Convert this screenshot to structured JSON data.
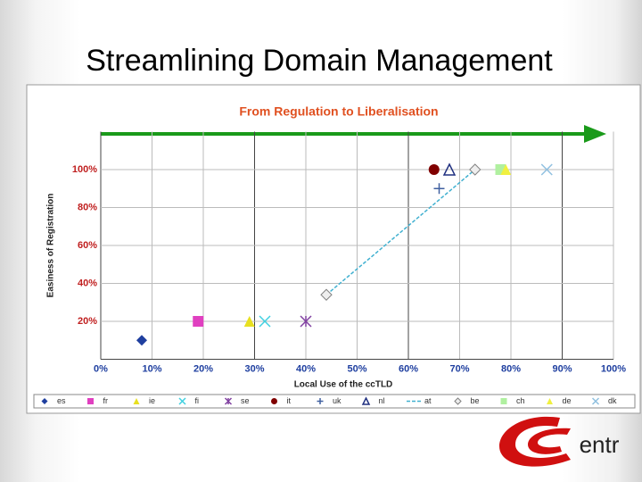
{
  "slide": {
    "title": "Streamlining Domain Management",
    "logo": "entr"
  },
  "chart_data": {
    "type": "scatter",
    "title": "From Regulation to Liberalisation",
    "x_label": "Local Use of the ccTLD",
    "y_label": "Easiness of Registration",
    "xlim": [
      0,
      100
    ],
    "ylim": [
      0,
      120
    ],
    "xticks": [
      {
        "value": 0,
        "label": "0%"
      },
      {
        "value": 10,
        "label": "10%"
      },
      {
        "value": 20,
        "label": "20%"
      },
      {
        "value": 30,
        "label": "30%"
      },
      {
        "value": 40,
        "label": "40%"
      },
      {
        "value": 50,
        "label": "50%"
      },
      {
        "value": 60,
        "label": "60%"
      },
      {
        "value": 70,
        "label": "70%"
      },
      {
        "value": 80,
        "label": "80%"
      },
      {
        "value": 90,
        "label": "90%"
      },
      {
        "value": 100,
        "label": "100%"
      }
    ],
    "yticks": [
      {
        "value": 20,
        "label": "20%"
      },
      {
        "value": 40,
        "label": "40%"
      },
      {
        "value": 60,
        "label": "60%"
      },
      {
        "value": 80,
        "label": "80%"
      },
      {
        "value": 100,
        "label": "100%"
      }
    ],
    "grid": true,
    "legend": "bottom",
    "series": [
      {
        "name": "es",
        "color": "#1f3f9f",
        "marker": "diamond",
        "x": [
          8
        ],
        "values": [
          10
        ]
      },
      {
        "name": "fr",
        "color": "#e040c0",
        "marker": "square",
        "x": [
          19
        ],
        "values": [
          20
        ]
      },
      {
        "name": "ie",
        "color": "#e8e020",
        "marker": "triangle",
        "x": [
          29
        ],
        "values": [
          20
        ]
      },
      {
        "name": "fi",
        "color": "#40d0e0",
        "marker": "x",
        "x": [
          32
        ],
        "values": [
          20
        ]
      },
      {
        "name": "se",
        "color": "#8040a0",
        "marker": "asterisk",
        "x": [
          40
        ],
        "values": [
          20
        ]
      },
      {
        "name": "it",
        "color": "#800000",
        "marker": "circle",
        "x": [
          65
        ],
        "values": [
          100
        ]
      },
      {
        "name": "uk",
        "color": "#4060a0",
        "marker": "plus",
        "x": [
          66
        ],
        "values": [
          90
        ]
      },
      {
        "name": "nl",
        "color": "#203080",
        "marker": "triangle-open",
        "x": [
          68
        ],
        "values": [
          100
        ]
      },
      {
        "name": "at",
        "color": "#40b0d0",
        "marker": "line",
        "x": [
          44,
          73
        ],
        "values": [
          34,
          100
        ]
      },
      {
        "name": "be",
        "color": "#808080",
        "marker": "diamond-open",
        "x": [
          44,
          73
        ],
        "values": [
          34,
          100
        ]
      },
      {
        "name": "ch",
        "color": "#b0f0a0",
        "marker": "square",
        "x": [
          78
        ],
        "values": [
          100
        ]
      },
      {
        "name": "de",
        "color": "#f0f040",
        "marker": "triangle",
        "x": [
          79
        ],
        "values": [
          100
        ]
      },
      {
        "name": "dk",
        "color": "#90c0e0",
        "marker": "x",
        "x": [
          87
        ],
        "values": [
          100
        ]
      }
    ]
  }
}
